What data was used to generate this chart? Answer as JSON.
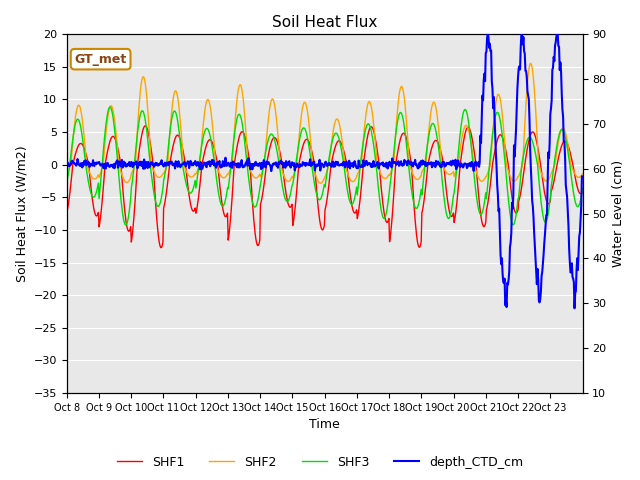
{
  "title": "Soil Heat Flux",
  "ylabel_left": "Soil Heat Flux (W/m2)",
  "ylabel_right": "Water Level (cm)",
  "xlabel": "Time",
  "ylim_left": [
    -35,
    20
  ],
  "ylim_right": [
    10,
    90
  ],
  "xtick_labels": [
    "Oct 8",
    "Oct 9",
    "Oct 10",
    "Oct 11",
    "Oct 12",
    "Oct 13",
    "Oct 14",
    "Oct 15",
    "Oct 16",
    "Oct 17",
    "Oct 18",
    "Oct 19",
    "Oct 20",
    "Oct 21",
    "Oct 22",
    "Oct 23"
  ],
  "yticks_left": [
    -35,
    -30,
    -25,
    -20,
    -15,
    -10,
    -5,
    0,
    5,
    10,
    15,
    20
  ],
  "yticks_right": [
    10,
    20,
    30,
    40,
    50,
    60,
    70,
    80,
    90
  ],
  "color_SHF1": "#ff0000",
  "color_SHF2": "#ffa500",
  "color_SHF3": "#00dd00",
  "color_depth": "#0000ff",
  "annotation_text": "GT_met",
  "annotation_fg": "#8B4513",
  "annotation_border": "#cc8800",
  "plot_bg": "#e8e8e8",
  "grid_color": "#ffffff",
  "linewidth": 1.0,
  "n_days": 16,
  "n_per_day": 48
}
